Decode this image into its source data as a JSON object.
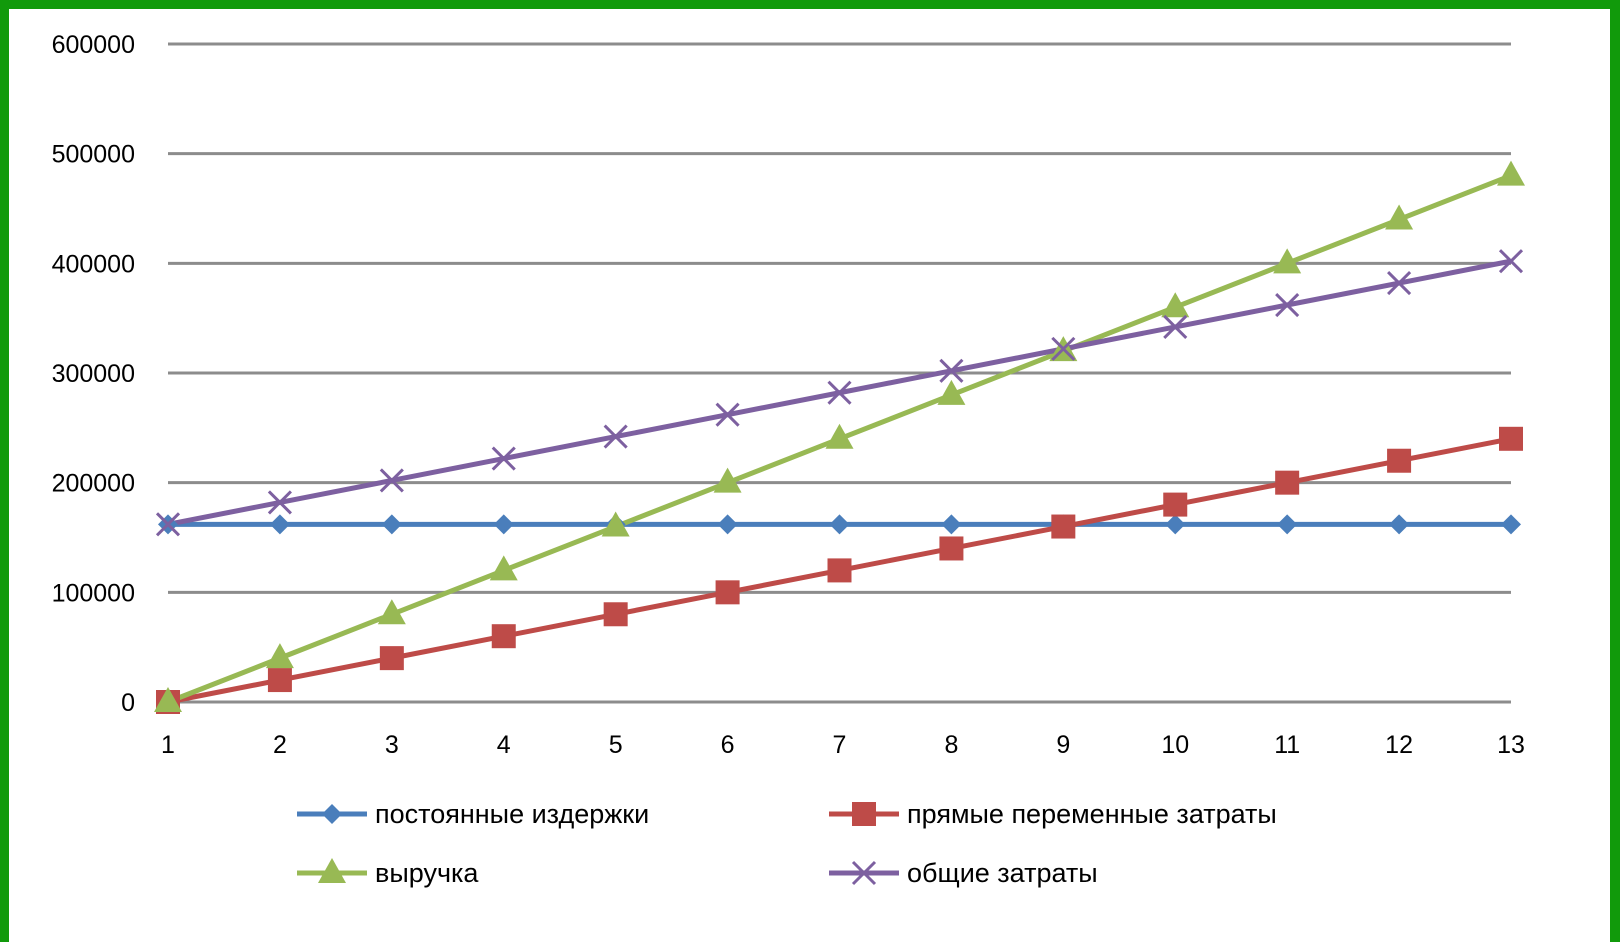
{
  "colors": {
    "border": "#119a0b",
    "gridline": "#8c8c8c"
  },
  "chart_data": {
    "type": "line",
    "title": "",
    "xlabel": "",
    "ylabel": "",
    "x": [
      1,
      2,
      3,
      4,
      5,
      6,
      7,
      8,
      9,
      10,
      11,
      12,
      13
    ],
    "ylim": [
      0,
      600000
    ],
    "yticks": [
      0,
      100000,
      200000,
      300000,
      400000,
      500000,
      600000
    ],
    "grid": true,
    "legend_position": "bottom",
    "series": [
      {
        "name": "постоянные издержки",
        "color": "#4a7ebb",
        "marker": "diamond",
        "values": [
          162000,
          162000,
          162000,
          162000,
          162000,
          162000,
          162000,
          162000,
          162000,
          162000,
          162000,
          162000,
          162000
        ]
      },
      {
        "name": "прямые переменные затраты",
        "color": "#be4b48",
        "marker": "square",
        "values": [
          0,
          20000,
          40000,
          60000,
          80000,
          100000,
          120000,
          140000,
          160000,
          180000,
          200000,
          220000,
          240000
        ]
      },
      {
        "name": "выручка",
        "color": "#98b954",
        "marker": "triangle",
        "values": [
          0,
          40000,
          80000,
          120000,
          160000,
          200000,
          240000,
          280000,
          320000,
          360000,
          400000,
          440000,
          480000
        ]
      },
      {
        "name": "общие затраты",
        "color": "#7d60a0",
        "marker": "x",
        "values": [
          162000,
          182000,
          202000,
          222000,
          242000,
          262000,
          282000,
          302000,
          322000,
          342000,
          362000,
          382000,
          402000
        ]
      }
    ]
  }
}
